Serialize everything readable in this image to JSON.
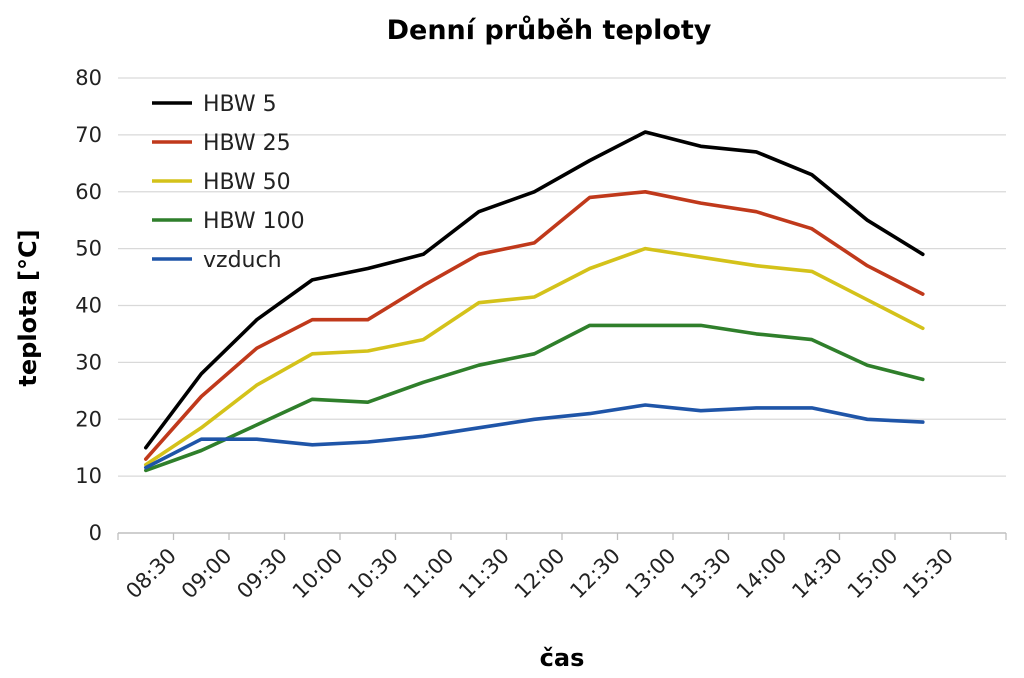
{
  "chart_data": {
    "type": "line",
    "title": "Denní průběh teploty",
    "xlabel": "čas",
    "ylabel": "teplota [°C]",
    "ylim": [
      0,
      80
    ],
    "yticks": [
      "0",
      "10",
      "20",
      "30",
      "40",
      "50",
      "60",
      "70",
      "80"
    ],
    "xticks": [
      "08:30",
      "09:00",
      "09:30",
      "10:00",
      "10:30",
      "11:00",
      "11:30",
      "12:00",
      "12:30",
      "13:00",
      "13:30",
      "14:00",
      "14:30",
      "15:00",
      "15:30"
    ],
    "x": [
      "08:15",
      "08:45",
      "09:15",
      "09:45",
      "10:15",
      "10:45",
      "11:15",
      "11:45",
      "12:15",
      "12:45",
      "13:15",
      "13:45",
      "14:15",
      "14:45",
      "15:15"
    ],
    "grid": true,
    "legend_position": "top-left",
    "series": [
      {
        "name": "HBW 5",
        "color": "#000000",
        "values": [
          15,
          28,
          37.5,
          44.5,
          46.5,
          49,
          56.5,
          60,
          65.5,
          70.5,
          68,
          67,
          63,
          55,
          49
        ]
      },
      {
        "name": "HBW 25",
        "color": "#c0391b",
        "values": [
          13,
          24,
          32.5,
          37.5,
          37.5,
          43.5,
          49,
          51,
          59,
          60,
          58,
          56.5,
          53.5,
          47,
          42
        ]
      },
      {
        "name": "HBW 50",
        "color": "#d4c21a",
        "values": [
          12,
          18.5,
          26,
          31.5,
          32,
          34,
          40.5,
          41.5,
          46.5,
          50,
          48.5,
          47,
          46,
          41,
          36
        ]
      },
      {
        "name": "HBW 100",
        "color": "#2f7f2b",
        "values": [
          11,
          14.5,
          19,
          23.5,
          23,
          26.5,
          29.5,
          31.5,
          36.5,
          36.5,
          36.5,
          35,
          34,
          29.5,
          27
        ]
      },
      {
        "name": "vzduch",
        "color": "#1f55a8",
        "values": [
          11.5,
          16.5,
          16.5,
          15.5,
          16,
          17,
          18.5,
          20,
          21,
          22.5,
          21.5,
          22,
          22,
          20,
          19.5
        ]
      }
    ]
  }
}
